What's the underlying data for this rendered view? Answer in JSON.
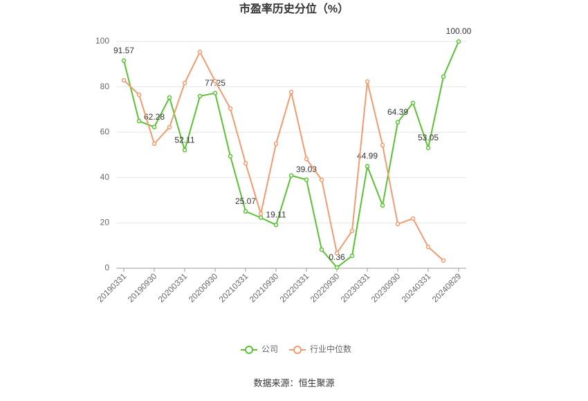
{
  "chart_data": {
    "type": "line",
    "title": "市盈率历史分位（%）",
    "categories": [
      "20190331",
      null,
      "20190930",
      null,
      "20200331",
      null,
      "20200930",
      null,
      "20210331",
      null,
      "20210930",
      null,
      "20220331",
      null,
      "20220930",
      null,
      "20230331",
      null,
      "20230930",
      null,
      "20240331",
      null,
      "20240829"
    ],
    "series": [
      {
        "name": "公司",
        "color": "#5ac134",
        "values": [
          91.57,
          64.9,
          62.28,
          75.3,
          52.11,
          75.9,
          77.25,
          49.4,
          25.07,
          22.3,
          19.11,
          40.9,
          39.03,
          8.2,
          0.36,
          5.5,
          44.99,
          27.7,
          64.39,
          72.9,
          53.05,
          84.5,
          100
        ],
        "value_labels": [
          "91.57",
          null,
          "62.28",
          null,
          "52.11",
          null,
          "77.25",
          null,
          "25.07",
          null,
          "19.11",
          null,
          "39.03",
          null,
          "0.36",
          null,
          "44.99",
          null,
          "64.39",
          null,
          "53.05",
          null,
          "100.00"
        ]
      },
      {
        "name": "行业中位数",
        "color": "#f39a6e",
        "values": [
          82.9,
          76.5,
          54.9,
          62.2,
          81.7,
          95.4,
          82.5,
          70.4,
          46.3,
          24,
          54.9,
          77.7,
          48.2,
          39,
          6.7,
          16.5,
          82.3,
          54.3,
          19.5,
          21.9,
          9.4,
          3.4,
          null
        ]
      }
    ],
    "ylim": [
      0,
      100
    ],
    "yticks": [
      0,
      20,
      40,
      60,
      80,
      100
    ],
    "grid": true,
    "source": "数据来源：恒生聚源"
  }
}
